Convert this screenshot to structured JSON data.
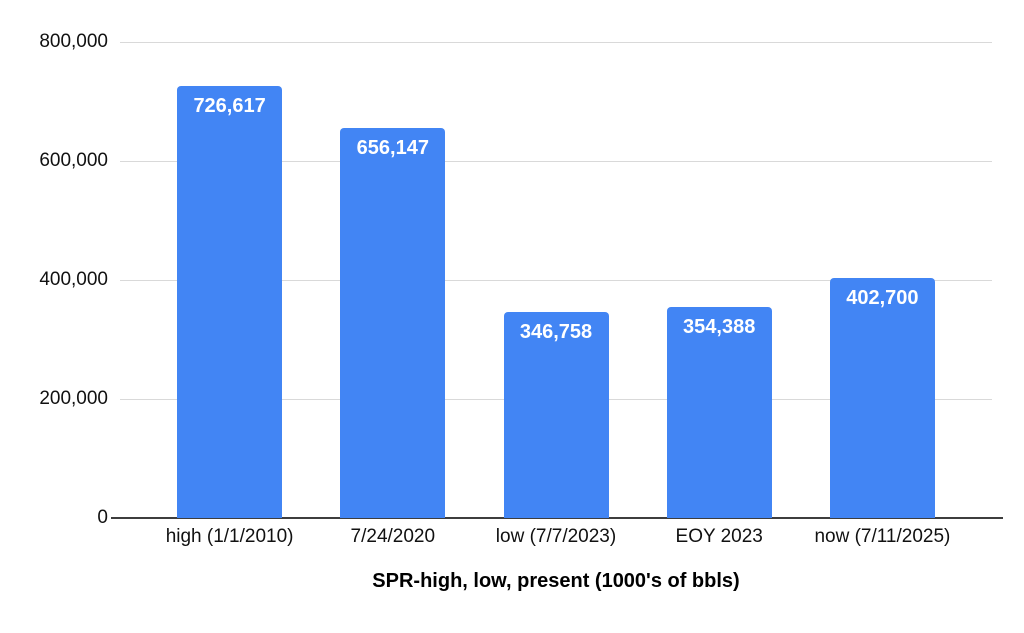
{
  "chart_data": {
    "type": "bar",
    "title": "SPR-high, low, present (1000's of bbls)",
    "xlabel": "SPR-high, low, present (1000's of bbls)",
    "ylabel": "",
    "categories": [
      "high (1/1/2010)",
      "7/24/2020",
      "low (7/7/2023)",
      "EOY 2023",
      "now (7/11/2025)"
    ],
    "values": [
      726617,
      656147,
      346758,
      354388,
      402700
    ],
    "value_labels": [
      "726,617",
      "656,147",
      "346,758",
      "354,388",
      "402,700"
    ],
    "ylim": [
      0,
      800000
    ],
    "yticks": [
      0,
      200000,
      400000,
      600000,
      800000
    ],
    "ytick_labels": [
      "0",
      "200,000",
      "400,000",
      "600,000",
      "800,000"
    ],
    "grid": true,
    "legend": false,
    "colors": {
      "bar": "#4285F4",
      "gridline": "#d9d9d9",
      "axis_line": "#3d3d3d",
      "value_label": "#ffffff",
      "tick_label": "#111111"
    }
  }
}
